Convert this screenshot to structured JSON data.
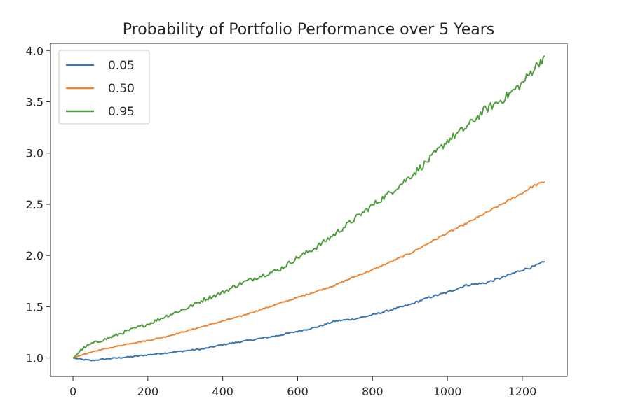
{
  "chart_data": {
    "type": "line",
    "title": "Probability of Portfolio Performance over 5 Years",
    "xlabel": "",
    "ylabel": "",
    "xlim": [
      -60,
      1320
    ],
    "ylim": [
      0.82,
      4.07
    ],
    "x_ticks": [
      0,
      200,
      400,
      600,
      800,
      1000,
      1200
    ],
    "y_ticks": [
      1.0,
      1.5,
      2.0,
      2.5,
      3.0,
      3.5,
      4.0
    ],
    "x_tick_labels": [
      "0",
      "200",
      "400",
      "600",
      "800",
      "1000",
      "1200"
    ],
    "y_tick_labels": [
      "1.0",
      "1.5",
      "2.0",
      "2.5",
      "3.0",
      "3.5",
      "4.0"
    ],
    "grid": false,
    "legend_position": "top-left",
    "x": [
      0,
      25,
      50,
      100,
      150,
      200,
      250,
      300,
      350,
      400,
      450,
      500,
      550,
      600,
      650,
      700,
      750,
      800,
      850,
      900,
      950,
      1000,
      1050,
      1100,
      1150,
      1200,
      1230,
      1260
    ],
    "series": [
      {
        "name": "0.05",
        "color": "#3a75af",
        "values": [
          1.0,
          0.985,
          0.975,
          0.995,
          1.01,
          1.03,
          1.05,
          1.07,
          1.09,
          1.13,
          1.16,
          1.19,
          1.22,
          1.26,
          1.3,
          1.36,
          1.38,
          1.42,
          1.47,
          1.52,
          1.59,
          1.64,
          1.71,
          1.73,
          1.79,
          1.86,
          1.89,
          1.94
        ]
      },
      {
        "name": "0.50",
        "color": "#ef8636",
        "values": [
          1.0,
          1.03,
          1.06,
          1.1,
          1.14,
          1.17,
          1.21,
          1.26,
          1.31,
          1.36,
          1.41,
          1.47,
          1.53,
          1.59,
          1.65,
          1.71,
          1.79,
          1.86,
          1.94,
          2.02,
          2.12,
          2.22,
          2.31,
          2.41,
          2.51,
          2.61,
          2.68,
          2.72
        ]
      },
      {
        "name": "0.95",
        "color": "#519e3e",
        "values": [
          1.0,
          1.09,
          1.14,
          1.2,
          1.27,
          1.33,
          1.41,
          1.48,
          1.57,
          1.64,
          1.73,
          1.8,
          1.86,
          1.98,
          2.08,
          2.21,
          2.35,
          2.49,
          2.62,
          2.77,
          2.93,
          3.12,
          3.25,
          3.42,
          3.53,
          3.68,
          3.82,
          3.95
        ]
      }
    ]
  }
}
